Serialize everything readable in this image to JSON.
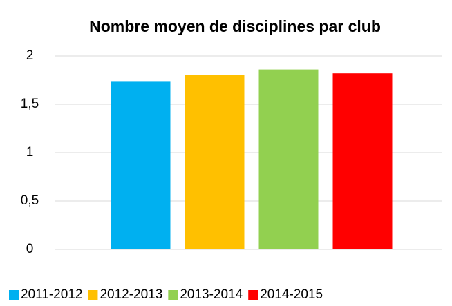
{
  "chart_data": {
    "type": "bar",
    "title": "Nombre moyen de disciplines par club",
    "series": [
      {
        "name": "2011-2012",
        "color": "#00b0f0",
        "values": [
          1.74
        ]
      },
      {
        "name": "2012-2013",
        "color": "#ffc000",
        "values": [
          1.8
        ]
      },
      {
        "name": "2013-2014",
        "color": "#92d050",
        "values": [
          1.86
        ]
      },
      {
        "name": "2014-2015",
        "color": "#ff0000",
        "values": [
          1.82
        ]
      }
    ],
    "ylim": [
      0,
      2
    ],
    "yticks": [
      0,
      {
        "value": 0.5,
        "label": "0,5"
      },
      1,
      {
        "value": 1.5,
        "label": "1,5"
      },
      2
    ],
    "grid": true,
    "legend": "bottom"
  }
}
